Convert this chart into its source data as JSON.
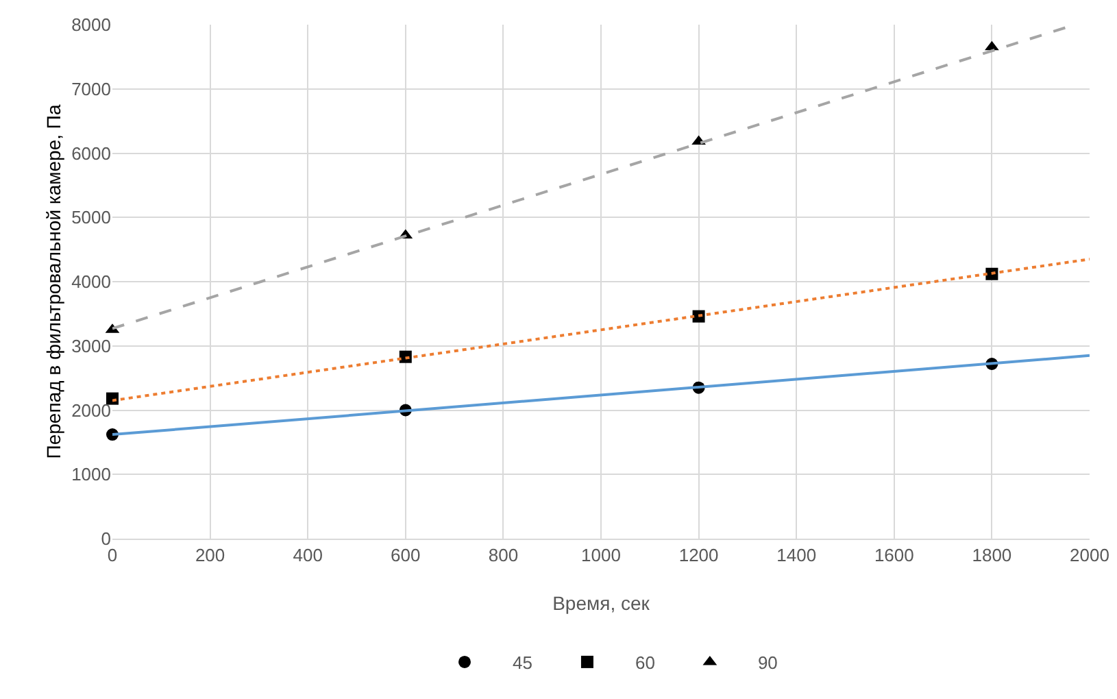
{
  "chart_data": {
    "type": "scatter",
    "xlabel": "Время, сек",
    "ylabel": "Перепад в фильтровальной камере, Па",
    "xlim": [
      0,
      2000
    ],
    "xticks": [
      0,
      200,
      400,
      600,
      800,
      1000,
      1200,
      1400,
      1600,
      1800,
      2000
    ],
    "ylim": [
      0,
      8000
    ],
    "yticks": [
      0,
      1000,
      2000,
      3000,
      4000,
      5000,
      6000,
      7000,
      8000
    ],
    "grid": true,
    "legend": "bottom",
    "series": [
      {
        "name": "45",
        "marker": "circle",
        "color": "#000000",
        "x": [
          0,
          600,
          1200,
          1800
        ],
        "values": [
          1620,
          2000,
          2350,
          2720
        ]
      },
      {
        "name": "60",
        "marker": "square",
        "color": "#000000",
        "x": [
          0,
          600,
          1200,
          1800
        ],
        "values": [
          2180,
          2830,
          3460,
          4120
        ]
      },
      {
        "name": "90",
        "marker": "triangle",
        "color": "#000000",
        "x": [
          0,
          600,
          1200,
          1800
        ],
        "values": [
          3250,
          4720,
          6180,
          7650
        ]
      },
      {
        "type": "line",
        "line_style": "solid",
        "color": "#5b9bd5",
        "x": [
          0,
          2000
        ],
        "values": [
          1620,
          2850
        ]
      },
      {
        "type": "line",
        "line_style": "dotted",
        "color": "#ed7d31",
        "x": [
          0,
          2000
        ],
        "values": [
          2150,
          4350
        ]
      },
      {
        "type": "line",
        "line_style": "dashed",
        "color": "#a5a5a5",
        "x": [
          0,
          1970
        ],
        "values": [
          3270,
          8000
        ]
      }
    ]
  }
}
